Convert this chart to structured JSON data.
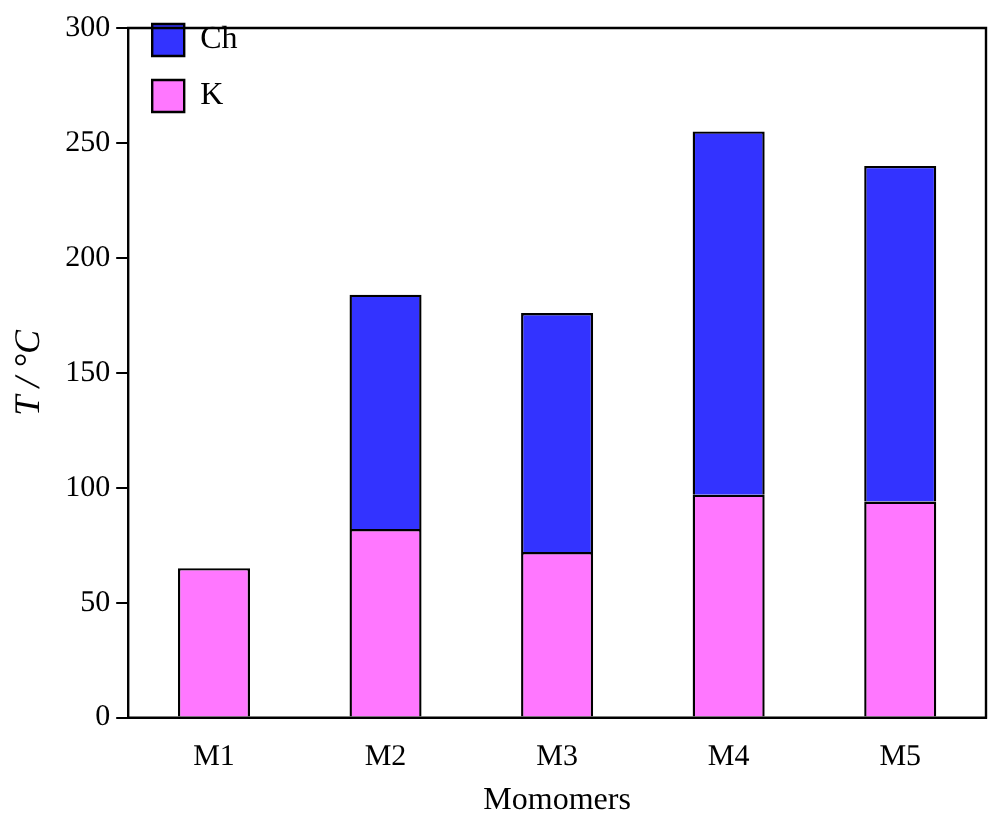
{
  "chart_data": {
    "type": "bar",
    "stacked": true,
    "xlabel": "Momomers",
    "ylabel": "T / °C",
    "categories": [
      "M1",
      "M2",
      "M3",
      "M4",
      "M5"
    ],
    "series": [
      {
        "name": "K",
        "color": "#ff77ff",
        "values": [
          65,
          82,
          72,
          97,
          94
        ]
      },
      {
        "name": "Ch",
        "color": "#3333ff",
        "values": [
          null,
          102,
          104,
          158,
          146
        ]
      }
    ],
    "ylim": [
      0,
      300
    ],
    "yticks": [
      0,
      50,
      100,
      150,
      200,
      250,
      300
    ],
    "grid": false,
    "legend": "top left"
  }
}
